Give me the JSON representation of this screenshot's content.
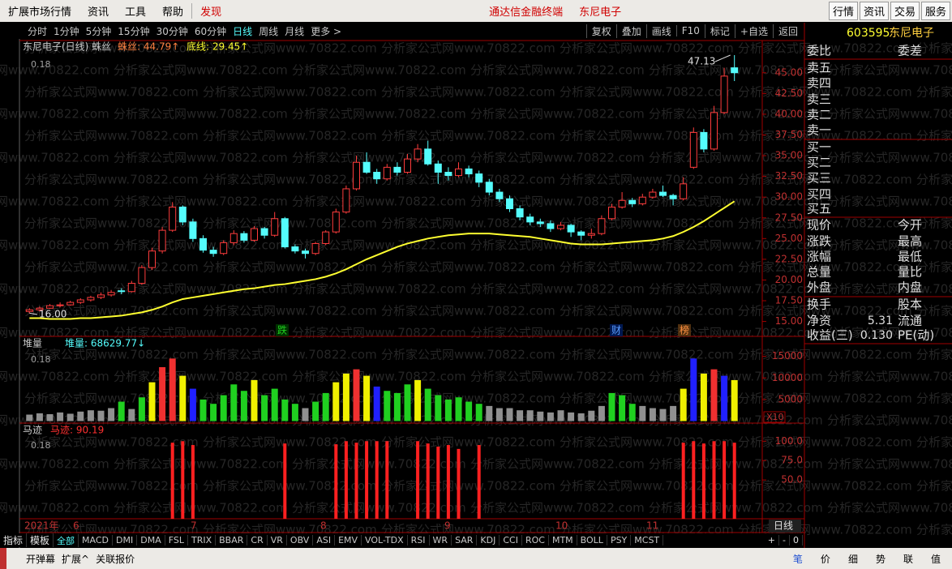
{
  "menu": {
    "items": [
      "扩展市场行情",
      "资讯",
      "工具",
      "帮助"
    ],
    "discover": "发现",
    "app_title": "通达信金融终端",
    "stock_name": "东尼电子",
    "buttons": [
      "行情",
      "资讯",
      "交易",
      "服务"
    ]
  },
  "toolbar": {
    "periods": [
      "分时",
      "1分钟",
      "5分钟",
      "15分钟",
      "30分钟",
      "60分钟",
      "日线",
      "周线",
      "月线",
      "更多 >"
    ],
    "tools": [
      "复权",
      "叠加",
      "画线",
      "F10",
      "标记",
      "+自选",
      "返回"
    ]
  },
  "main": {
    "title": "东尼电子(日线) 蛛丝",
    "ind1": "蛛丝: 44.79↑",
    "ind2": "底线: 29.45↑",
    "scale_note": "0.18",
    "max_label": "47.13",
    "min_label": "16.00",
    "events": [
      "跌",
      "财",
      "榜"
    ],
    "ylim": [
      13.2,
      48.4
    ],
    "yticks": [
      {
        "value": 15,
        "label": "15.00"
      },
      {
        "value": 17.5,
        "label": "17.50"
      },
      {
        "value": 20,
        "label": "20.00"
      },
      {
        "value": 22.5,
        "label": "22.50"
      },
      {
        "value": 25,
        "label": "25.00"
      },
      {
        "value": 27.5,
        "label": "27.50"
      },
      {
        "value": 30,
        "label": "30.00"
      },
      {
        "value": 32.5,
        "label": "32.50"
      },
      {
        "value": 35,
        "label": "35.00"
      },
      {
        "value": 37.5,
        "label": "37.50"
      },
      {
        "value": 40,
        "label": "40.00"
      },
      {
        "value": 42.5,
        "label": "42.50"
      },
      {
        "value": 45,
        "label": "45.00"
      }
    ],
    "up_color": "#ff3c3c",
    "down_color": "#54fcfc",
    "ma_color": "#ffff30",
    "candles": [
      [
        16.2,
        16.6,
        16.0,
        16.4
      ],
      [
        16.4,
        16.8,
        16.2,
        16.6
      ],
      [
        16.6,
        17.1,
        16.5,
        16.9
      ],
      [
        16.9,
        17.3,
        16.7,
        17.0
      ],
      [
        17.0,
        17.5,
        16.9,
        17.3
      ],
      [
        17.3,
        17.8,
        17.1,
        17.6
      ],
      [
        17.6,
        18.1,
        17.4,
        17.9
      ],
      [
        17.9,
        18.5,
        17.7,
        18.2
      ],
      [
        18.2,
        18.8,
        18.0,
        18.5
      ],
      [
        18.7,
        19.0,
        18.3,
        18.6
      ],
      [
        18.6,
        19.9,
        18.5,
        19.6
      ],
      [
        19.6,
        21.8,
        19.4,
        21.5
      ],
      [
        21.5,
        23.9,
        21.2,
        23.5
      ],
      [
        23.5,
        26.4,
        23.2,
        26.0
      ],
      [
        26.0,
        29.4,
        25.8,
        28.8
      ],
      [
        28.8,
        29.0,
        26.6,
        27.0
      ],
      [
        27.0,
        27.4,
        24.6,
        25.0
      ],
      [
        25.0,
        25.4,
        23.3,
        23.6
      ],
      [
        23.6,
        24.0,
        22.8,
        23.2
      ],
      [
        23.2,
        24.8,
        23.0,
        24.5
      ],
      [
        24.5,
        26.0,
        24.2,
        25.6
      ],
      [
        25.6,
        25.9,
        24.5,
        24.8
      ],
      [
        24.8,
        26.5,
        24.6,
        26.2
      ],
      [
        26.2,
        26.4,
        25.0,
        25.4
      ],
      [
        25.4,
        28.2,
        25.2,
        27.4
      ],
      [
        27.4,
        27.6,
        23.8,
        24.0
      ],
      [
        24.0,
        24.3,
        23.2,
        23.5
      ],
      [
        23.5,
        23.8,
        22.6,
        23.2
      ],
      [
        23.2,
        24.6,
        23.0,
        24.4
      ],
      [
        24.4,
        26.0,
        24.2,
        25.8
      ],
      [
        25.8,
        28.6,
        25.6,
        28.2
      ],
      [
        28.2,
        31.4,
        28.0,
        31.0
      ],
      [
        31.0,
        35.0,
        30.8,
        34.2
      ],
      [
        34.2,
        35.4,
        32.8,
        33.0
      ],
      [
        33.0,
        33.4,
        31.6,
        32.2
      ],
      [
        32.2,
        34.0,
        32.0,
        33.6
      ],
      [
        33.6,
        34.2,
        32.6,
        33.0
      ],
      [
        33.0,
        35.2,
        32.8,
        34.6
      ],
      [
        34.6,
        36.4,
        34.2,
        35.8
      ],
      [
        35.8,
        36.8,
        33.8,
        34.0
      ],
      [
        34.0,
        34.4,
        31.6,
        33.0
      ],
      [
        33.0,
        33.6,
        32.0,
        32.6
      ],
      [
        32.6,
        34.2,
        32.4,
        33.4
      ],
      [
        33.4,
        33.8,
        32.4,
        32.8
      ],
      [
        32.8,
        33.2,
        31.2,
        31.8
      ],
      [
        31.8,
        32.2,
        30.2,
        30.6
      ],
      [
        30.6,
        31.0,
        29.4,
        29.8
      ],
      [
        29.8,
        30.2,
        28.2,
        28.6
      ],
      [
        28.6,
        29.0,
        27.2,
        27.6
      ],
      [
        27.6,
        28.0,
        26.6,
        27.0
      ],
      [
        27.0,
        27.4,
        26.4,
        26.8
      ],
      [
        26.8,
        27.2,
        25.8,
        26.2
      ],
      [
        26.2,
        27.0,
        26.0,
        26.6
      ],
      [
        26.6,
        26.8,
        25.2,
        25.8
      ],
      [
        25.8,
        26.0,
        24.8,
        25.4
      ],
      [
        25.4,
        26.2,
        25.0,
        25.6
      ],
      [
        25.6,
        27.8,
        25.4,
        27.4
      ],
      [
        27.4,
        29.2,
        27.2,
        28.8
      ],
      [
        28.8,
        30.6,
        28.6,
        29.6
      ],
      [
        29.6,
        29.9,
        28.8,
        29.2
      ],
      [
        29.2,
        30.4,
        29.0,
        30.0
      ],
      [
        30.0,
        31.0,
        29.8,
        30.6
      ],
      [
        30.6,
        31.4,
        30.0,
        30.2
      ],
      [
        30.2,
        30.4,
        29.0,
        29.8
      ],
      [
        29.8,
        32.4,
        29.6,
        31.6
      ],
      [
        33.6,
        38.4,
        33.4,
        37.8
      ],
      [
        37.8,
        38.2,
        35.4,
        35.8
      ],
      [
        35.8,
        41.0,
        35.6,
        40.2
      ],
      [
        40.2,
        45.6,
        40.0,
        44.6
      ],
      [
        45.6,
        47.13,
        44.0,
        45.0
      ]
    ],
    "ma": [
      15.4,
      15.4,
      15.3,
      15.3,
      15.3,
      15.4,
      15.4,
      15.5,
      15.6,
      15.7,
      15.9,
      16.1,
      16.4,
      16.8,
      17.3,
      17.7,
      17.9,
      18.1,
      18.3,
      18.5,
      18.7,
      18.9,
      19.0,
      19.2,
      19.4,
      19.5,
      19.7,
      19.9,
      20.1,
      20.4,
      20.8,
      21.3,
      21.9,
      22.5,
      23.0,
      23.5,
      24.0,
      24.4,
      24.7,
      25.0,
      25.2,
      25.4,
      25.5,
      25.6,
      25.6,
      25.6,
      25.5,
      25.4,
      25.3,
      25.2,
      25.0,
      24.8,
      24.6,
      24.4,
      24.3,
      24.3,
      24.3,
      24.4,
      24.5,
      24.6,
      24.7,
      24.8,
      25.0,
      25.3,
      25.8,
      26.4,
      27.1,
      27.9,
      28.7,
      29.5
    ]
  },
  "volume": {
    "title": "堆量",
    "ind": "堆量: 68629.77↓",
    "scale_note": "0.18",
    "unit": "X10",
    "ylim": [
      0,
      17000
    ],
    "yticks": [
      5000,
      10000,
      15000
    ],
    "values": [
      1500,
      1800,
      1600,
      2000,
      1700,
      2200,
      2500,
      2400,
      3000,
      4500,
      2800,
      5500,
      9000,
      12500,
      14500,
      10500,
      7500,
      5000,
      4000,
      6000,
      8500,
      7000,
      9500,
      6000,
      7500,
      5000,
      4000,
      3000,
      4500,
      6500,
      9000,
      11000,
      12000,
      10500,
      8000,
      7000,
      6500,
      8500,
      9500,
      7500,
      6000,
      5000,
      5500,
      4500,
      4000,
      3500,
      3000,
      3000,
      2500,
      2500,
      2200,
      2000,
      2500,
      2000,
      1800,
      2400,
      3500,
      6500,
      6000,
      4000,
      3500,
      3000,
      2800,
      3500,
      7500,
      14500,
      11000,
      12000,
      10500,
      9500
    ],
    "colors": [
      "#909090",
      "#909090",
      "#909090",
      "#909090",
      "#909090",
      "#909090",
      "#909090",
      "#909090",
      "#909090",
      "#20d020",
      "#909090",
      "#20d020",
      "#f0f000",
      "#f03030",
      "#f03030",
      "#f0f000",
      "#2020ff",
      "#20d020",
      "#20d020",
      "#20d020",
      "#20d020",
      "#20d020",
      "#f0f000",
      "#20d020",
      "#20d020",
      "#20d020",
      "#20d020",
      "#909090",
      "#20d020",
      "#20d020",
      "#f0f000",
      "#f0f000",
      "#f03030",
      "#f0f000",
      "#2020ff",
      "#20d020",
      "#20d020",
      "#20d020",
      "#f0f000",
      "#20d020",
      "#20d020",
      "#20d020",
      "#20d020",
      "#20d020",
      "#20d020",
      "#909090",
      "#909090",
      "#909090",
      "#909090",
      "#909090",
      "#909090",
      "#909090",
      "#909090",
      "#909090",
      "#909090",
      "#909090",
      "#909090",
      "#20d020",
      "#20d020",
      "#20d020",
      "#909090",
      "#909090",
      "#909090",
      "#909090",
      "#f0f000",
      "#2020ff",
      "#f0f000",
      "#f03030",
      "#2020ff",
      "#f0f000"
    ]
  },
  "trace": {
    "title": "马迹",
    "ind": "马迹: 90.19",
    "scale_note": "0.18",
    "ylim": [
      0,
      117
    ],
    "color": "#ff2020",
    "yticks": [
      {
        "value": 50,
        "label": "50.0"
      },
      {
        "value": 75,
        "label": "75.0"
      },
      {
        "value": 100,
        "label": "100.0"
      }
    ],
    "values": [
      null,
      null,
      null,
      null,
      null,
      null,
      null,
      null,
      null,
      null,
      null,
      null,
      null,
      null,
      98,
      100,
      95,
      null,
      null,
      null,
      null,
      null,
      null,
      null,
      null,
      97,
      null,
      null,
      null,
      null,
      96,
      100,
      98,
      100,
      100,
      100,
      null,
      null,
      100,
      97,
      93,
      95,
      90,
      null,
      95,
      null,
      null,
      null,
      null,
      null,
      null,
      null,
      null,
      null,
      null,
      null,
      null,
      null,
      null,
      null,
      null,
      null,
      null,
      null,
      98,
      100,
      97,
      100,
      100,
      98
    ]
  },
  "time_axis": {
    "labels": [
      "2021年",
      "6",
      "7",
      "8",
      "9",
      "10",
      "11"
    ],
    "period": "日线"
  },
  "quote": {
    "code": "603595",
    "name": "东尼电子",
    "rows": [
      [
        "委比",
        "委差"
      ],
      [
        "卖五"
      ],
      [
        "卖四"
      ],
      [
        "卖三"
      ],
      [
        "卖二"
      ],
      [
        "卖一"
      ],
      [
        "买一"
      ],
      [
        "买二"
      ],
      [
        "买三"
      ],
      [
        "买四"
      ],
      [
        "买五"
      ],
      [
        "现价",
        "今开"
      ],
      [
        "涨跌",
        "最高"
      ],
      [
        "涨幅",
        "最低"
      ],
      [
        "总量",
        "量比"
      ],
      [
        "外盘",
        "内盘"
      ],
      [
        "换手",
        "股本"
      ],
      [
        "净资",
        "5.31",
        "流通"
      ],
      [
        "收益(三)",
        "0.130",
        "PE(动)"
      ]
    ]
  },
  "tabs": {
    "items": [
      "指标",
      "模板",
      "全部",
      "MACD",
      "DMI",
      "DMA",
      "FSL",
      "TRIX",
      "BBAR",
      "CR",
      "VR",
      "OBV",
      "ASI",
      "EMV",
      "VOL-TDX",
      "RSI",
      "WR",
      "SAR",
      "KDJ",
      "CCI",
      "ROC",
      "MTM",
      "BOLL",
      "PSY",
      "MCST"
    ],
    "controls": [
      "+",
      "-",
      "0"
    ]
  },
  "status": {
    "left": [
      "开弹幕",
      "扩展^",
      "关联报价"
    ],
    "right": [
      "笔",
      "价",
      "细",
      "势",
      "联",
      "值"
    ]
  },
  "watermark": "分析家公式网www.70822.com"
}
